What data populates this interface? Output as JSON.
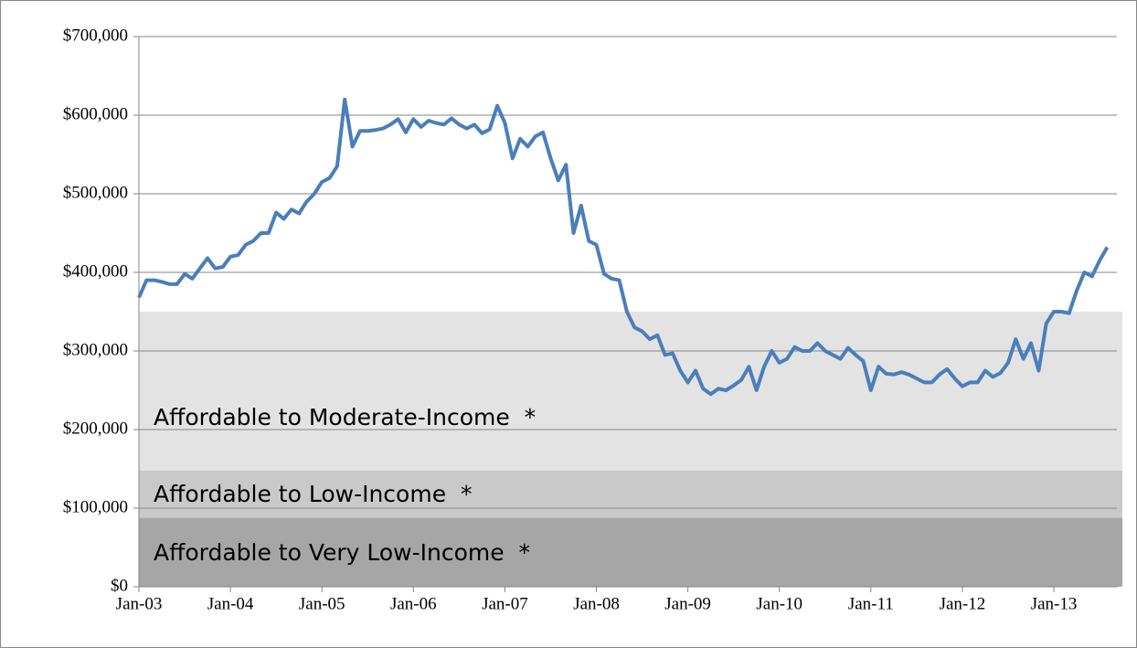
{
  "chart_data": {
    "type": "line",
    "x": [
      "2003-01",
      "2003-02",
      "2003-03",
      "2003-04",
      "2003-05",
      "2003-06",
      "2003-07",
      "2003-08",
      "2003-09",
      "2003-10",
      "2003-11",
      "2003-12",
      "2004-01",
      "2004-02",
      "2004-03",
      "2004-04",
      "2004-05",
      "2004-06",
      "2004-07",
      "2004-08",
      "2004-09",
      "2004-10",
      "2004-11",
      "2004-12",
      "2005-01",
      "2005-02",
      "2005-03",
      "2005-04",
      "2005-05",
      "2005-06",
      "2005-07",
      "2005-08",
      "2005-09",
      "2005-10",
      "2005-11",
      "2005-12",
      "2006-01",
      "2006-02",
      "2006-03",
      "2006-04",
      "2006-05",
      "2006-06",
      "2006-07",
      "2006-08",
      "2006-09",
      "2006-10",
      "2006-11",
      "2006-12",
      "2007-01",
      "2007-02",
      "2007-03",
      "2007-04",
      "2007-05",
      "2007-06",
      "2007-07",
      "2007-08",
      "2007-09",
      "2007-10",
      "2007-11",
      "2007-12",
      "2008-01",
      "2008-02",
      "2008-03",
      "2008-04",
      "2008-05",
      "2008-06",
      "2008-07",
      "2008-08",
      "2008-09",
      "2008-10",
      "2008-11",
      "2008-12",
      "2009-01",
      "2009-02",
      "2009-03",
      "2009-04",
      "2009-05",
      "2009-06",
      "2009-07",
      "2009-08",
      "2009-09",
      "2009-10",
      "2009-11",
      "2009-12",
      "2010-01",
      "2010-02",
      "2010-03",
      "2010-04",
      "2010-05",
      "2010-06",
      "2010-07",
      "2010-08",
      "2010-09",
      "2010-10",
      "2010-11",
      "2010-12",
      "2011-01",
      "2011-02",
      "2011-03",
      "2011-04",
      "2011-05",
      "2011-06",
      "2011-07",
      "2011-08",
      "2011-09",
      "2011-10",
      "2011-11",
      "2011-12",
      "2012-01",
      "2012-02",
      "2012-03",
      "2012-04",
      "2012-05",
      "2012-06",
      "2012-07",
      "2012-08",
      "2012-09",
      "2012-10",
      "2012-11",
      "2012-12",
      "2013-01",
      "2013-02",
      "2013-03",
      "2013-04",
      "2013-05",
      "2013-06",
      "2013-07",
      "2013-08"
    ],
    "series": [
      {
        "color": "#4a7ebb",
        "values": [
          368000,
          390000,
          390000,
          388000,
          385000,
          385000,
          398000,
          392000,
          405000,
          418000,
          405000,
          407000,
          420000,
          422000,
          435000,
          440000,
          450000,
          450000,
          476000,
          468000,
          480000,
          475000,
          490000,
          500000,
          515000,
          520000,
          535000,
          620000,
          560000,
          580000,
          580000,
          581000,
          583000,
          588000,
          595000,
          578000,
          595000,
          585000,
          593000,
          590000,
          588000,
          596000,
          588000,
          583000,
          588000,
          577000,
          582000,
          612000,
          590000,
          545000,
          570000,
          560000,
          573000,
          578000,
          545000,
          517000,
          537000,
          450000,
          485000,
          440000,
          435000,
          398000,
          392000,
          390000,
          350000,
          330000,
          325000,
          315000,
          320000,
          295000,
          297000,
          275000,
          260000,
          275000,
          252000,
          245000,
          252000,
          250000,
          256000,
          263000,
          280000,
          250000,
          280000,
          300000,
          285000,
          290000,
          305000,
          300000,
          300000,
          310000,
          300000,
          295000,
          290000,
          304000,
          295000,
          287000,
          250000,
          280000,
          271000,
          270000,
          273000,
          270000,
          265000,
          260000,
          260000,
          270000,
          277000,
          265000,
          255000,
          260000,
          260000,
          275000,
          267000,
          272000,
          285000,
          315000,
          290000,
          310000,
          275000,
          335000,
          350000,
          350000,
          348000,
          377000,
          400000,
          395000,
          415000,
          432000
        ]
      }
    ],
    "bands": [
      {
        "label": "Affordable to Very Low-Income  *",
        "range": [
          0,
          88000
        ],
        "color": "#a6a6a6"
      },
      {
        "label": "Affordable to Low-Income  *",
        "range": [
          88000,
          148000
        ],
        "color": "#c9c9c9"
      },
      {
        "label": "Affordable to Moderate-Income  *",
        "range": [
          148000,
          350000
        ],
        "color": "#e3e3e3"
      }
    ],
    "ylim": [
      0,
      700000
    ],
    "yticks": [
      {
        "value": 0,
        "label": "$0"
      },
      {
        "value": 100000,
        "label": "$100,000"
      },
      {
        "value": 200000,
        "label": "$200,000"
      },
      {
        "value": 300000,
        "label": "$300,000"
      },
      {
        "value": 400000,
        "label": "$400,000"
      },
      {
        "value": 500000,
        "label": "$500,000"
      },
      {
        "value": 600000,
        "label": "$600,000"
      },
      {
        "value": 700000,
        "label": "$700,000"
      }
    ],
    "xticks": [
      {
        "value": "2003-01",
        "label": "Jan-03"
      },
      {
        "value": "2004-01",
        "label": "Jan-04"
      },
      {
        "value": "2005-01",
        "label": "Jan-05"
      },
      {
        "value": "2006-01",
        "label": "Jan-06"
      },
      {
        "value": "2007-01",
        "label": "Jan-07"
      },
      {
        "value": "2008-01",
        "label": "Jan-08"
      },
      {
        "value": "2009-01",
        "label": "Jan-09"
      },
      {
        "value": "2010-01",
        "label": "Jan-10"
      },
      {
        "value": "2011-01",
        "label": "Jan-11"
      },
      {
        "value": "2012-01",
        "label": "Jan-12"
      },
      {
        "value": "2013-01",
        "label": "Jan-13"
      }
    ],
    "grid": true
  }
}
